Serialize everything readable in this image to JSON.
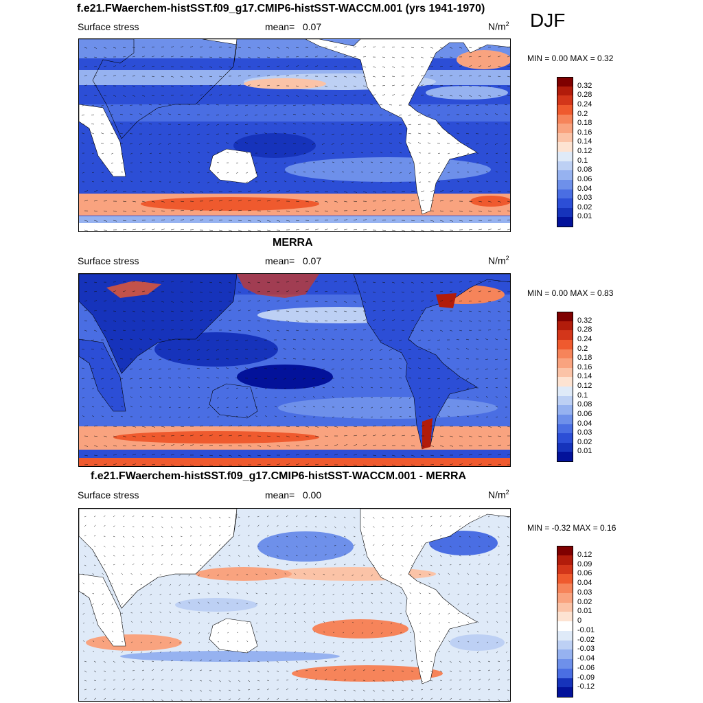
{
  "season": "DJF",
  "panels": [
    {
      "title": "f.e21.FWaerchem-histSST.f09_g17.CMIP6-histSST-WACCM.001 (yrs 1941-1970)",
      "variable": "Surface stress",
      "mean_label": "mean=",
      "mean_value": "0.07",
      "units_base": "N/m",
      "units_exp": "2",
      "minmax": "MIN =  0.00 MAX =  0.32",
      "colorbar": {
        "labels": [
          "0.32",
          "0.28",
          "0.24",
          "0.2",
          "0.18",
          "0.16",
          "0.14",
          "0.12",
          "0.1",
          "0.08",
          "0.06",
          "0.04",
          "0.03",
          "0.02",
          "0.01"
        ],
        "colors": [
          "#7f0000",
          "#b21c0b",
          "#d3361a",
          "#ef5a2e",
          "#f6845a",
          "#f9a37f",
          "#fbc3a7",
          "#fde3d2",
          "#dfeaf8",
          "#bdd0f4",
          "#96b2f0",
          "#6e90ea",
          "#4a6ee3",
          "#2c4ed6",
          "#1633bb",
          "#03129a"
        ]
      }
    },
    {
      "title": "MERRA",
      "variable": "Surface stress",
      "mean_label": "mean=",
      "mean_value": "0.07",
      "units_base": "N/m",
      "units_exp": "2",
      "minmax": "MIN =  0.00 MAX =  0.83",
      "colorbar": {
        "labels": [
          "0.32",
          "0.28",
          "0.24",
          "0.2",
          "0.18",
          "0.16",
          "0.14",
          "0.12",
          "0.1",
          "0.08",
          "0.06",
          "0.04",
          "0.03",
          "0.02",
          "0.01"
        ],
        "colors": [
          "#7f0000",
          "#b21c0b",
          "#d3361a",
          "#ef5a2e",
          "#f6845a",
          "#f9a37f",
          "#fbc3a7",
          "#fde3d2",
          "#dfeaf8",
          "#bdd0f4",
          "#96b2f0",
          "#6e90ea",
          "#4a6ee3",
          "#2c4ed6",
          "#1633bb",
          "#03129a"
        ]
      }
    },
    {
      "title": "f.e21.FWaerchem-histSST.f09_g17.CMIP6-histSST-WACCM.001 - MERRA",
      "variable": "Surface stress",
      "mean_label": "mean=",
      "mean_value": "0.00",
      "units_base": "N/m",
      "units_exp": "2",
      "minmax": "MIN =  -0.32 MAX =  0.16",
      "colorbar": {
        "labels": [
          "0.12",
          "0.09",
          "0.06",
          "0.04",
          "0.03",
          "0.02",
          "0.01",
          "0",
          "-0.01",
          "-0.02",
          "-0.03",
          "-0.04",
          "-0.06",
          "-0.09",
          "-0.12"
        ],
        "colors": [
          "#7f0000",
          "#b21c0b",
          "#d3361a",
          "#ef5a2e",
          "#f6845a",
          "#f9a37f",
          "#fbc3a7",
          "#fde3d2",
          "#ffffff",
          "#dfeaf8",
          "#bdd0f4",
          "#96b2f0",
          "#6e90ea",
          "#4a6ee3",
          "#1633bb",
          "#03129a"
        ]
      }
    }
  ]
}
